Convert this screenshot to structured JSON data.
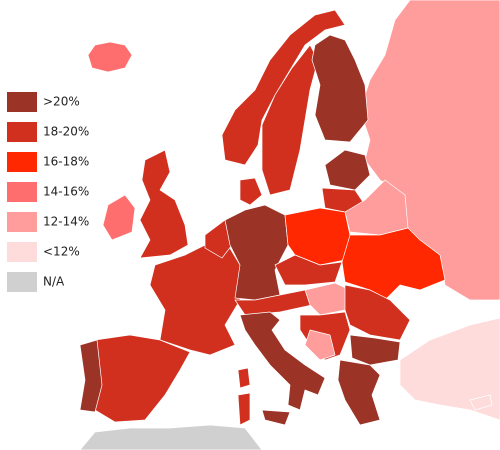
{
  "legend": {
    "items": [
      {
        "label": ">20%",
        "color": "#9b3326"
      },
      {
        "label": "18-20%",
        "color": "#d2301f"
      },
      {
        "label": "16-18%",
        "color": "#ff2800"
      },
      {
        "label": "14-16%",
        "color": "#ff6e6e"
      },
      {
        "label": "12-14%",
        "color": "#ff9c9c"
      },
      {
        "label": "<12%",
        "color": "#ffdcdc"
      },
      {
        "label": "N/A",
        "color": "#d0d0d0"
      }
    ]
  }
}
